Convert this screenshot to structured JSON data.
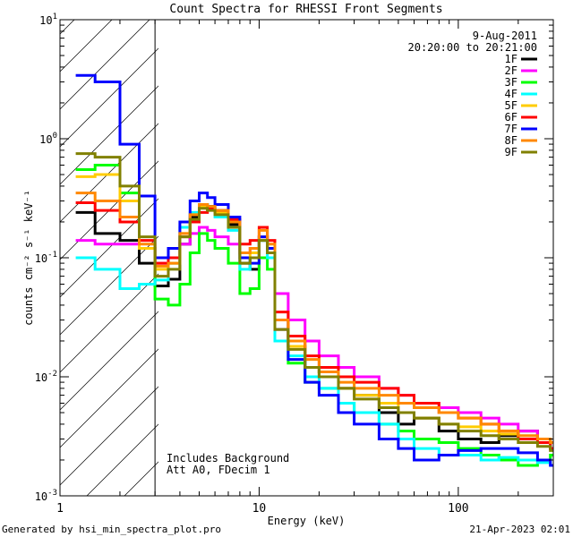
{
  "chart_data": {
    "type": "line",
    "title": "Count Spectra for RHESSI Front Segments",
    "xlabel": "Energy (keV)",
    "ylabel": "counts cm⁻² s⁻¹ keV⁻¹",
    "xscale": "log",
    "yscale": "log",
    "xlim": [
      1,
      300
    ],
    "ylim": [
      0.001,
      10
    ],
    "x_tick_labels": [
      {
        "value": 1,
        "label": "1"
      },
      {
        "value": 10,
        "label": "10"
      },
      {
        "value": 100,
        "label": "100"
      }
    ],
    "y_tick_labels": [
      {
        "value": 10,
        "base": "10",
        "exp": "1"
      },
      {
        "value": 1,
        "base": "10",
        "exp": "0"
      },
      {
        "value": 0.1,
        "base": "10",
        "exp": "-1"
      },
      {
        "value": 0.01,
        "base": "10",
        "exp": "-2"
      },
      {
        "value": 0.001,
        "base": "10",
        "exp": "-3"
      }
    ],
    "hatched_region_max_energy": 3,
    "date": "9-Aug-2011",
    "time_range": "20:20:00 to 20:21:00",
    "annotations": [
      "Includes Background",
      "Att A0, FDecim 1"
    ],
    "series": [
      {
        "name": "1F",
        "color": "#000000",
        "x": [
          1.2,
          1.5,
          2,
          2.5,
          3,
          3.5,
          4,
          4.5,
          5,
          5.5,
          6,
          7,
          8,
          9,
          10,
          11,
          12,
          14,
          17,
          20,
          25,
          30,
          40,
          50,
          60,
          80,
          100,
          130,
          160,
          200,
          250,
          290
        ],
        "y": [
          0.24,
          0.16,
          0.14,
          0.09,
          0.058,
          0.066,
          0.13,
          0.22,
          0.28,
          0.27,
          0.24,
          0.19,
          0.09,
          0.08,
          0.14,
          0.11,
          0.03,
          0.018,
          0.012,
          0.011,
          0.008,
          0.007,
          0.005,
          0.004,
          0.0045,
          0.0035,
          0.003,
          0.0028,
          0.0032,
          0.0035,
          0.003,
          0.0025
        ]
      },
      {
        "name": "2F",
        "color": "#ff00ff",
        "x": [
          1.2,
          1.5,
          2,
          2.5,
          3,
          3.5,
          4,
          4.5,
          5,
          5.5,
          6,
          7,
          8,
          9,
          10,
          11,
          12,
          14,
          17,
          20,
          25,
          30,
          40,
          50,
          60,
          80,
          100,
          130,
          160,
          200,
          250,
          290
        ],
        "y": [
          0.14,
          0.13,
          0.13,
          0.12,
          0.09,
          0.1,
          0.13,
          0.16,
          0.18,
          0.17,
          0.15,
          0.13,
          0.11,
          0.12,
          0.15,
          0.12,
          0.05,
          0.03,
          0.02,
          0.015,
          0.012,
          0.01,
          0.008,
          0.007,
          0.006,
          0.0055,
          0.005,
          0.0045,
          0.004,
          0.0035,
          0.003,
          0.0025
        ]
      },
      {
        "name": "3F",
        "color": "#00ff00",
        "x": [
          1.2,
          1.5,
          2,
          2.5,
          3,
          3.5,
          4,
          4.5,
          5,
          5.5,
          6,
          7,
          8,
          9,
          10,
          11,
          12,
          14,
          17,
          20,
          25,
          30,
          40,
          50,
          60,
          80,
          100,
          130,
          160,
          200,
          250,
          290
        ],
        "y": [
          0.55,
          0.6,
          0.35,
          0.12,
          0.045,
          0.04,
          0.06,
          0.11,
          0.16,
          0.14,
          0.12,
          0.09,
          0.05,
          0.055,
          0.1,
          0.08,
          0.02,
          0.013,
          0.009,
          0.008,
          0.006,
          0.005,
          0.004,
          0.0035,
          0.003,
          0.0028,
          0.0025,
          0.0022,
          0.002,
          0.0018,
          0.002,
          0.0022
        ]
      },
      {
        "name": "4F",
        "color": "#00ffff",
        "x": [
          1.2,
          1.5,
          2,
          2.5,
          3,
          3.5,
          4,
          4.5,
          5,
          5.5,
          6,
          7,
          8,
          9,
          10,
          11,
          12,
          14,
          17,
          20,
          25,
          30,
          40,
          50,
          60,
          80,
          100,
          130,
          160,
          200,
          250,
          290
        ],
        "y": [
          0.1,
          0.08,
          0.055,
          0.06,
          0.065,
          0.09,
          0.18,
          0.24,
          0.28,
          0.26,
          0.22,
          0.17,
          0.08,
          0.1,
          0.14,
          0.1,
          0.02,
          0.015,
          0.01,
          0.008,
          0.006,
          0.005,
          0.004,
          0.003,
          0.0025,
          0.0022,
          0.0022,
          0.002,
          0.0021,
          0.002,
          0.0019,
          0.0018
        ]
      },
      {
        "name": "5F",
        "color": "#ffcc00",
        "x": [
          1.2,
          1.5,
          2,
          2.5,
          3,
          3.5,
          4,
          4.5,
          5,
          5.5,
          6,
          7,
          8,
          9,
          10,
          11,
          12,
          14,
          17,
          20,
          25,
          30,
          40,
          50,
          60,
          80,
          100,
          130,
          160,
          200,
          250,
          290
        ],
        "y": [
          0.48,
          0.5,
          0.3,
          0.12,
          0.08,
          0.09,
          0.16,
          0.23,
          0.27,
          0.26,
          0.24,
          0.2,
          0.1,
          0.11,
          0.15,
          0.12,
          0.025,
          0.018,
          0.012,
          0.01,
          0.008,
          0.007,
          0.006,
          0.005,
          0.0045,
          0.004,
          0.0038,
          0.0035,
          0.0033,
          0.003,
          0.003,
          0.0028
        ]
      },
      {
        "name": "6F",
        "color": "#ff0000",
        "x": [
          1.2,
          1.5,
          2,
          2.5,
          3,
          3.5,
          4,
          4.5,
          5,
          5.5,
          6,
          7,
          8,
          9,
          10,
          11,
          12,
          14,
          17,
          20,
          25,
          30,
          40,
          50,
          60,
          80,
          100,
          130,
          160,
          200,
          250,
          290
        ],
        "y": [
          0.29,
          0.25,
          0.2,
          0.14,
          0.09,
          0.1,
          0.15,
          0.2,
          0.24,
          0.26,
          0.25,
          0.21,
          0.13,
          0.14,
          0.18,
          0.14,
          0.035,
          0.022,
          0.015,
          0.012,
          0.01,
          0.009,
          0.008,
          0.007,
          0.006,
          0.005,
          0.0045,
          0.004,
          0.0035,
          0.003,
          0.0028,
          0.0025
        ]
      },
      {
        "name": "7F",
        "color": "#0000ff",
        "x": [
          1.2,
          1.5,
          2,
          2.5,
          3,
          3.5,
          4,
          4.5,
          5,
          5.5,
          6,
          7,
          8,
          9,
          10,
          11,
          12,
          14,
          17,
          20,
          25,
          30,
          40,
          50,
          60,
          80,
          100,
          130,
          160,
          200,
          250,
          290
        ],
        "y": [
          3.4,
          3.0,
          0.9,
          0.33,
          0.1,
          0.12,
          0.2,
          0.3,
          0.35,
          0.32,
          0.28,
          0.22,
          0.1,
          0.09,
          0.15,
          0.12,
          0.025,
          0.014,
          0.009,
          0.007,
          0.005,
          0.004,
          0.003,
          0.0025,
          0.002,
          0.0022,
          0.0024,
          0.0025,
          0.0025,
          0.0023,
          0.002,
          0.0018
        ]
      },
      {
        "name": "8F",
        "color": "#ff8800",
        "x": [
          1.2,
          1.5,
          2,
          2.5,
          3,
          3.5,
          4,
          4.5,
          5,
          5.5,
          6,
          7,
          8,
          9,
          10,
          11,
          12,
          14,
          17,
          20,
          25,
          30,
          40,
          50,
          60,
          80,
          100,
          130,
          160,
          200,
          250,
          290
        ],
        "y": [
          0.35,
          0.3,
          0.22,
          0.13,
          0.085,
          0.09,
          0.16,
          0.23,
          0.28,
          0.27,
          0.25,
          0.2,
          0.11,
          0.12,
          0.17,
          0.13,
          0.03,
          0.02,
          0.014,
          0.011,
          0.009,
          0.008,
          0.007,
          0.006,
          0.0055,
          0.005,
          0.0045,
          0.004,
          0.0035,
          0.0032,
          0.003,
          0.0028
        ]
      },
      {
        "name": "9F",
        "color": "#808000",
        "x": [
          1.2,
          1.5,
          2,
          2.5,
          3,
          3.5,
          4,
          4.5,
          5,
          5.5,
          6,
          7,
          8,
          9,
          10,
          11,
          12,
          14,
          17,
          20,
          25,
          30,
          40,
          50,
          60,
          80,
          100,
          130,
          160,
          200,
          250,
          290
        ],
        "y": [
          0.75,
          0.7,
          0.4,
          0.15,
          0.07,
          0.08,
          0.15,
          0.21,
          0.26,
          0.25,
          0.23,
          0.18,
          0.09,
          0.1,
          0.14,
          0.11,
          0.025,
          0.017,
          0.012,
          0.01,
          0.008,
          0.0065,
          0.0055,
          0.005,
          0.0045,
          0.004,
          0.0035,
          0.0032,
          0.003,
          0.0028,
          0.0026,
          0.0024
        ]
      }
    ]
  },
  "footer": {
    "generated_by": "Generated by hsi_min_spectra_plot.pro",
    "timestamp": "21-Apr-2023 02:01"
  }
}
